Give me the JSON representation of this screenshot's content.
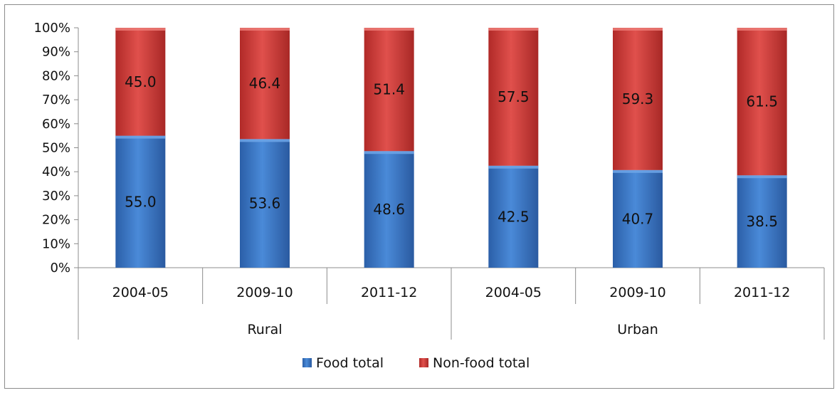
{
  "chart_data": {
    "type": "bar",
    "stacked": true,
    "percent_stacked": true,
    "title": "",
    "categories": [
      "2004-05",
      "2009-10",
      "2011-12",
      "2004-05",
      "2009-10",
      "2011-12"
    ],
    "groups": [
      {
        "label": "Rural",
        "span": 3
      },
      {
        "label": "Urban",
        "span": 3
      }
    ],
    "series": [
      {
        "name": "Food total",
        "color": "#3b78c9",
        "values": [
          55.0,
          53.6,
          48.6,
          42.5,
          40.7,
          38.5
        ]
      },
      {
        "name": "Non-food total",
        "color": "#cf3a38",
        "values": [
          45.0,
          46.4,
          51.4,
          57.5,
          59.3,
          61.5
        ]
      }
    ],
    "data_labels": [
      [
        "55.0",
        "53.6",
        "48.6",
        "42.5",
        "40.7",
        "38.5"
      ],
      [
        "45.0",
        "46.4",
        "51.4",
        "57.5",
        "59.3",
        "61.5"
      ]
    ],
    "y_ticks": [
      "0%",
      "10%",
      "20%",
      "30%",
      "40%",
      "50%",
      "60%",
      "70%",
      "80%",
      "90%",
      "100%"
    ],
    "ylim": [
      0,
      100
    ],
    "grid": false,
    "legend": {
      "position": "bottom",
      "entries": [
        "Food total",
        "Non-food total"
      ]
    }
  }
}
